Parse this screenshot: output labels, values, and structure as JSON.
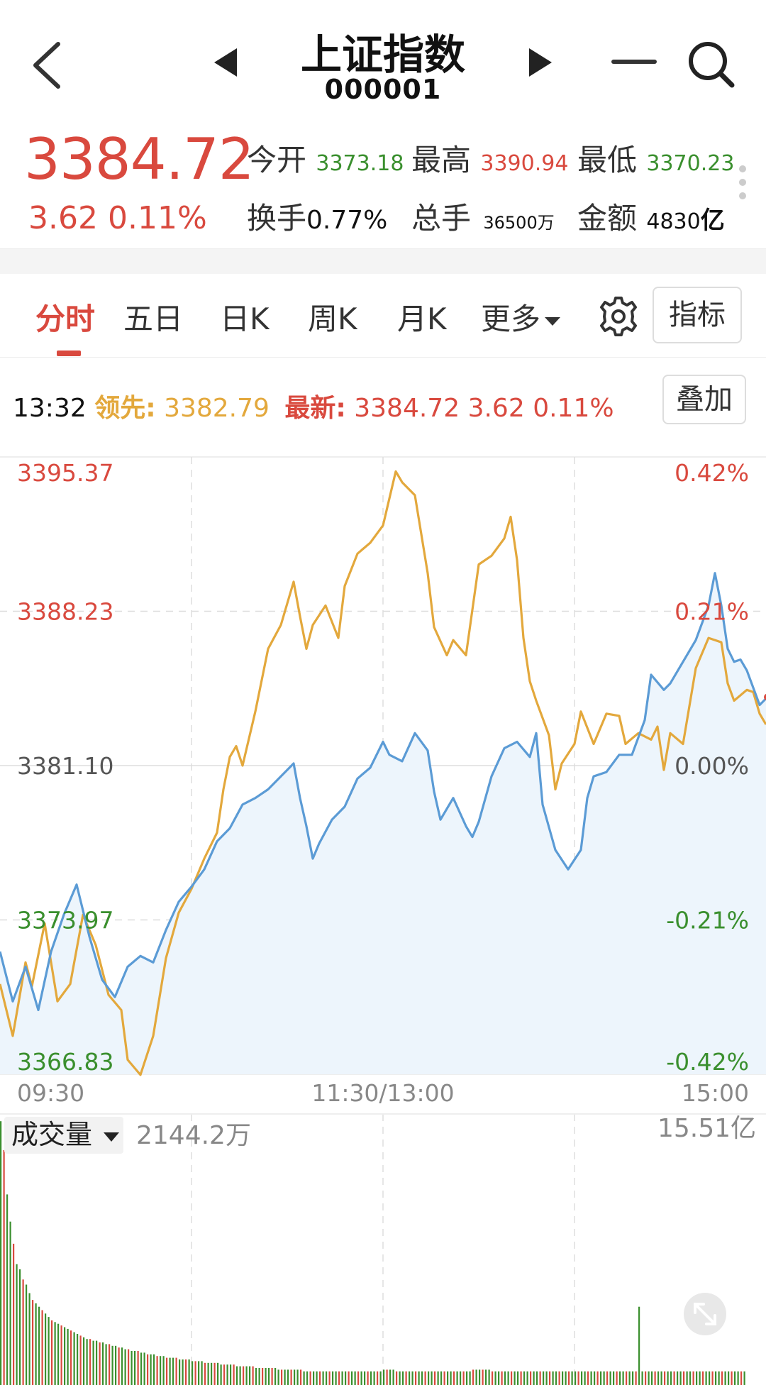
{
  "header": {
    "title": "上证指数",
    "code": "000001",
    "icons": [
      "back-icon",
      "prev-icon",
      "next-icon",
      "menu-icon",
      "search-icon"
    ]
  },
  "quote": {
    "price": "3384.72",
    "change": "3.62",
    "change_pct": "0.11%",
    "open_label": "今开",
    "open": "3373.18",
    "high_label": "最高",
    "high": "3390.94",
    "low_label": "最低",
    "low": "3370.23",
    "turnover_label": "换手",
    "turnover": "0.77%",
    "volume_label": "总手",
    "volume": "36500万",
    "amount_label": "金额",
    "amount_num": "4830",
    "amount_unit": "亿"
  },
  "tabs": {
    "items": [
      "分时",
      "五日",
      "日K",
      "周K",
      "月K"
    ],
    "more": "更多",
    "indicator_btn": "指标"
  },
  "info": {
    "time": "13:32",
    "lead_label": "领先:",
    "lead_value": "3382.79",
    "latest_label": "最新:",
    "latest_value": "3384.72",
    "latest_change": "3.62",
    "latest_pct": "0.11%",
    "overlay_btn": "叠加"
  },
  "volume": {
    "label": "成交量",
    "value": "2144.2万",
    "max_label": "15.51亿"
  },
  "colors": {
    "up": "#d9493e",
    "down": "#3a8f2e",
    "price_line": "#5b9bd5",
    "lead_line": "#e3a83c",
    "area": "#edf5fc"
  },
  "chart_data": {
    "type": "line",
    "x_labels": [
      "09:30",
      "11:30/13:00",
      "15:00"
    ],
    "y_labels": [
      "3395.37",
      "3388.23",
      "3381.10",
      "3373.97",
      "3366.83"
    ],
    "y_pct_labels": [
      "0.42%",
      "0.21%",
      "0.00%",
      "-0.21%",
      "-0.42%"
    ],
    "ylim": [
      3366.83,
      3395.37
    ],
    "x_range": [
      0,
      240
    ],
    "series": [
      {
        "values": [
          [
            0,
            3372.5
          ],
          [
            4,
            3370.2
          ],
          [
            8,
            3371.8
          ],
          [
            12,
            3369.8
          ],
          [
            16,
            3372.5
          ],
          [
            20,
            3374.2
          ],
          [
            24,
            3375.6
          ],
          [
            28,
            3373.2
          ],
          [
            32,
            3371.2
          ],
          [
            36,
            3370.4
          ],
          [
            40,
            3371.8
          ],
          [
            44,
            3372.3
          ],
          [
            48,
            3372.0
          ],
          [
            52,
            3373.5
          ],
          [
            56,
            3374.8
          ],
          [
            60,
            3375.5
          ],
          [
            64,
            3376.3
          ],
          [
            68,
            3377.6
          ],
          [
            72,
            3378.2
          ],
          [
            76,
            3379.3
          ],
          [
            80,
            3379.6
          ],
          [
            84,
            3380.0
          ],
          [
            88,
            3380.6
          ],
          [
            92,
            3381.2
          ],
          [
            94,
            3379.6
          ],
          [
            96,
            3378.3
          ],
          [
            98,
            3376.8
          ],
          [
            100,
            3377.5
          ],
          [
            104,
            3378.6
          ],
          [
            108,
            3379.2
          ],
          [
            112,
            3380.5
          ],
          [
            116,
            3381.0
          ],
          [
            120,
            3382.2
          ],
          [
            122,
            3381.6
          ],
          [
            126,
            3381.3
          ],
          [
            130,
            3382.6
          ],
          [
            134,
            3381.8
          ],
          [
            136,
            3379.9
          ],
          [
            138,
            3378.6
          ],
          [
            142,
            3379.6
          ],
          [
            146,
            3378.3
          ],
          [
            148,
            3377.8
          ],
          [
            150,
            3378.5
          ],
          [
            154,
            3380.6
          ],
          [
            158,
            3381.9
          ],
          [
            162,
            3382.2
          ],
          [
            166,
            3381.5
          ],
          [
            168,
            3382.6
          ],
          [
            170,
            3379.3
          ],
          [
            174,
            3377.2
          ],
          [
            178,
            3376.3
          ],
          [
            182,
            3377.2
          ],
          [
            184,
            3379.6
          ],
          [
            186,
            3380.6
          ],
          [
            190,
            3380.8
          ],
          [
            194,
            3381.6
          ],
          [
            198,
            3381.6
          ],
          [
            202,
            3383.2
          ],
          [
            204,
            3385.3
          ],
          [
            208,
            3384.6
          ],
          [
            210,
            3384.9
          ],
          [
            214,
            3385.9
          ],
          [
            218,
            3386.9
          ],
          [
            222,
            3388.5
          ],
          [
            224,
            3390.0
          ],
          [
            226,
            3388.5
          ],
          [
            228,
            3386.5
          ],
          [
            230,
            3385.9
          ],
          [
            232,
            3386.0
          ],
          [
            234,
            3385.5
          ],
          [
            238,
            3383.9
          ],
          [
            240,
            3384.2
          ]
        ]
      },
      {
        "values": [
          [
            0,
            3371.0
          ],
          [
            4,
            3368.6
          ],
          [
            8,
            3372.0
          ],
          [
            10,
            3370.9
          ],
          [
            14,
            3373.8
          ],
          [
            18,
            3370.2
          ],
          [
            22,
            3371.0
          ],
          [
            26,
            3374.2
          ],
          [
            30,
            3372.8
          ],
          [
            34,
            3370.5
          ],
          [
            38,
            3369.8
          ],
          [
            40,
            3367.5
          ],
          [
            44,
            3366.8
          ],
          [
            48,
            3368.6
          ],
          [
            52,
            3372.2
          ],
          [
            56,
            3374.3
          ],
          [
            60,
            3375.4
          ],
          [
            64,
            3376.8
          ],
          [
            68,
            3378.0
          ],
          [
            70,
            3380.0
          ],
          [
            72,
            3381.5
          ],
          [
            74,
            3382.0
          ],
          [
            76,
            3381.1
          ],
          [
            80,
            3383.6
          ],
          [
            84,
            3386.5
          ],
          [
            88,
            3387.6
          ],
          [
            92,
            3389.6
          ],
          [
            94,
            3388.0
          ],
          [
            96,
            3386.5
          ],
          [
            98,
            3387.6
          ],
          [
            102,
            3388.5
          ],
          [
            106,
            3387.0
          ],
          [
            108,
            3389.4
          ],
          [
            112,
            3390.9
          ],
          [
            116,
            3391.4
          ],
          [
            120,
            3392.2
          ],
          [
            124,
            3394.7
          ],
          [
            126,
            3394.2
          ],
          [
            130,
            3393.6
          ],
          [
            134,
            3390.0
          ],
          [
            136,
            3387.5
          ],
          [
            140,
            3386.2
          ],
          [
            142,
            3386.9
          ],
          [
            146,
            3386.2
          ],
          [
            150,
            3390.4
          ],
          [
            154,
            3390.8
          ],
          [
            158,
            3391.6
          ],
          [
            160,
            3392.6
          ],
          [
            162,
            3390.6
          ],
          [
            164,
            3387.0
          ],
          [
            166,
            3385.0
          ],
          [
            168,
            3384.1
          ],
          [
            172,
            3382.5
          ],
          [
            174,
            3380.0
          ],
          [
            176,
            3381.2
          ],
          [
            180,
            3382.1
          ],
          [
            182,
            3383.6
          ],
          [
            186,
            3382.1
          ],
          [
            190,
            3383.5
          ],
          [
            194,
            3383.4
          ],
          [
            196,
            3382.1
          ],
          [
            200,
            3382.6
          ],
          [
            204,
            3382.3
          ],
          [
            206,
            3382.9
          ],
          [
            208,
            3380.9
          ],
          [
            210,
            3382.6
          ],
          [
            214,
            3382.1
          ],
          [
            218,
            3385.6
          ],
          [
            222,
            3387.0
          ],
          [
            226,
            3386.8
          ],
          [
            228,
            3384.9
          ],
          [
            230,
            3384.1
          ],
          [
            234,
            3384.6
          ],
          [
            236,
            3384.5
          ],
          [
            238,
            3383.5
          ],
          [
            240,
            3383.0
          ]
        ]
      }
    ],
    "volume_max": 15.51,
    "volume_values": [
      15.5,
      13.8,
      11.2,
      9.6,
      8.3,
      7.1,
      6.8,
      6.2,
      5.9,
      5.4,
      5.0,
      4.8,
      4.6,
      4.4,
      4.2,
      4.0,
      3.8,
      3.7,
      3.6,
      3.5,
      3.4,
      3.3,
      3.2,
      3.1,
      3.0,
      2.9,
      2.8,
      2.7,
      2.7,
      2.6,
      2.6,
      2.5,
      2.5,
      2.4,
      2.4,
      2.3,
      2.3,
      2.2,
      2.2,
      2.1,
      2.1,
      2.0,
      2.0,
      2.0,
      1.9,
      1.9,
      1.8,
      1.8,
      1.8,
      1.7,
      1.7,
      1.7,
      1.6,
      1.6,
      1.6,
      1.6,
      1.5,
      1.5,
      1.5,
      1.5,
      1.4,
      1.4,
      1.4,
      1.4,
      1.3,
      1.3,
      1.3,
      1.3,
      1.3,
      1.2,
      1.2,
      1.2,
      1.2,
      1.2,
      1.1,
      1.1,
      1.1,
      1.1,
      1.1,
      1.1,
      1.0,
      1.0,
      1.0,
      1.0,
      1.0,
      1.0,
      1.0,
      0.9,
      0.9,
      0.9,
      0.9,
      0.9,
      0.9,
      0.9,
      0.9,
      0.8,
      0.8,
      0.8,
      0.8,
      0.8,
      0.8,
      0.8,
      0.8,
      0.8,
      0.8,
      0.8,
      0.8,
      0.8,
      0.8,
      0.8,
      0.8,
      0.8,
      0.8,
      0.8,
      0.8,
      0.8,
      0.8,
      0.8,
      0.8,
      0.8,
      0.9,
      0.9,
      0.9,
      0.9,
      0.8,
      0.8,
      0.8,
      0.8,
      0.8,
      0.8,
      0.8,
      0.8,
      0.8,
      0.8,
      0.8,
      0.8,
      0.8,
      0.8,
      0.8,
      0.8,
      0.8,
      0.8,
      0.8,
      0.8,
      0.8,
      0.8,
      0.8,
      0.8,
      0.9,
      0.9,
      0.9,
      0.9,
      0.9,
      0.9,
      0.8,
      0.8,
      0.8,
      0.8,
      0.8,
      0.8,
      0.8,
      0.8,
      0.8,
      0.8,
      0.8,
      0.8,
      0.8,
      0.8,
      0.8,
      0.8,
      0.8,
      0.8,
      0.8,
      0.8,
      0.8,
      0.8,
      0.8,
      0.8,
      0.8,
      0.8,
      0.8,
      0.8,
      0.8,
      0.8,
      0.8,
      0.8,
      0.8,
      0.8,
      0.8,
      0.8,
      0.8,
      0.8,
      0.8,
      0.8,
      0.8,
      0.8,
      0.8,
      0.8,
      0.8,
      0.8,
      4.6,
      0.8,
      0.8,
      0.8,
      0.8,
      0.8,
      0.8,
      0.8,
      0.8,
      0.8,
      0.8,
      0.8,
      0.8,
      0.8,
      0.8,
      0.8,
      0.8,
      0.8,
      0.8,
      0.8,
      0.8,
      0.8,
      0.8,
      0.8,
      0.8,
      0.8,
      0.8,
      0.8,
      0.8,
      0.8,
      0.8,
      0.8,
      0.8,
      0.8
    ]
  }
}
